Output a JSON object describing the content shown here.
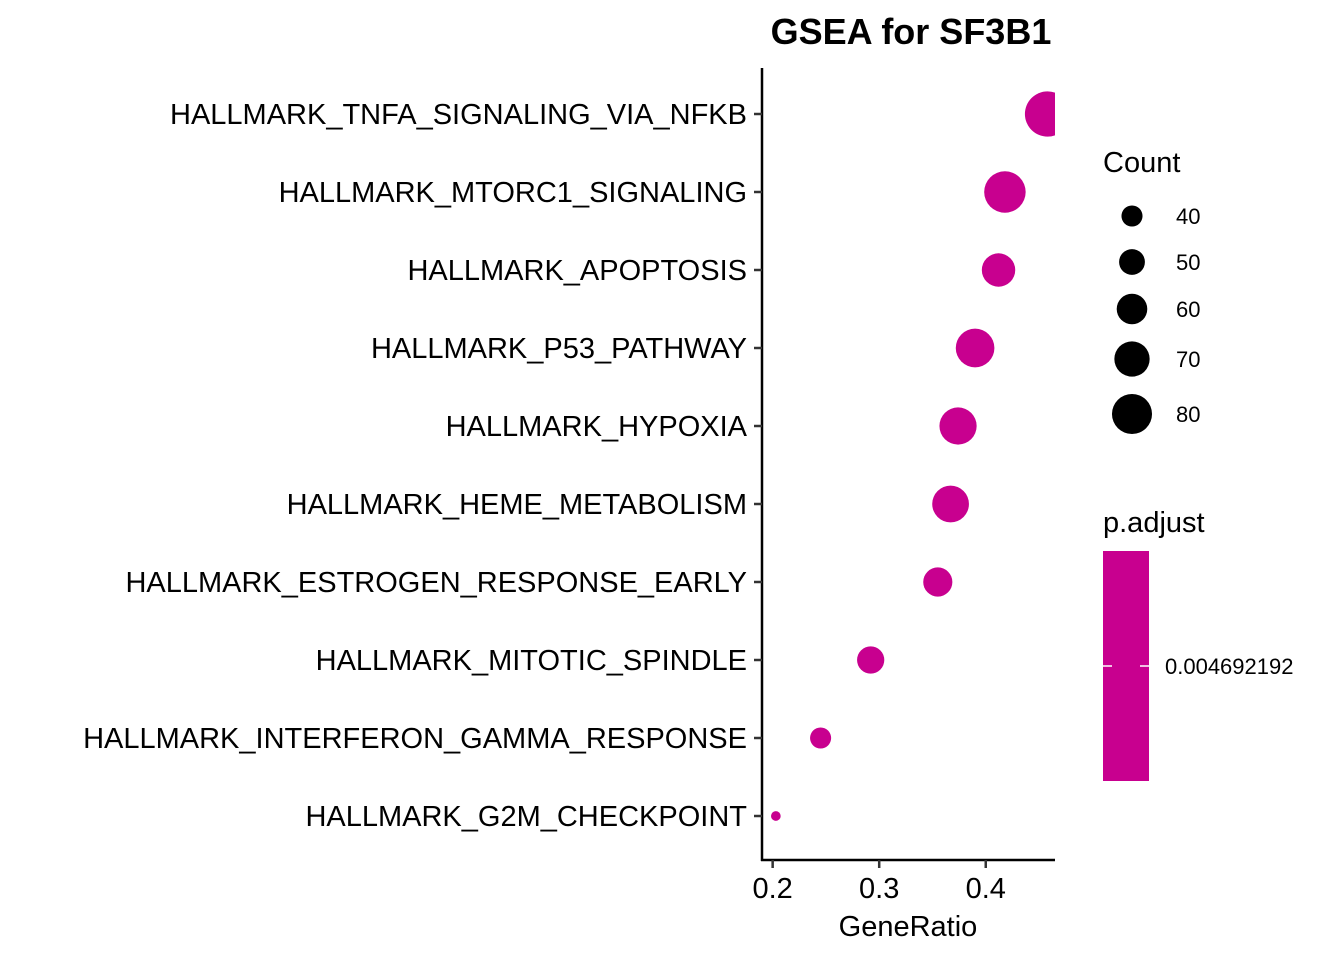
{
  "chart_data": {
    "type": "scatter",
    "title": "GSEA for SF3B1",
    "xlabel": "GeneRatio",
    "ylabel": "",
    "xlim": [
      0.19,
      0.465
    ],
    "x_ticks": [
      0.2,
      0.3,
      0.4
    ],
    "x_tick_labels": [
      "0.2",
      "0.3",
      "0.4"
    ],
    "categories": [
      "HALLMARK_TNFA_SIGNALING_VIA_NFKB",
      "HALLMARK_MTORC1_SIGNALING",
      "HALLMARK_APOPTOSIS",
      "HALLMARK_P53_PATHWAY",
      "HALLMARK_HYPOXIA",
      "HALLMARK_HEME_METABOLISM",
      "HALLMARK_ESTROGEN_RESPONSE_EARLY",
      "HALLMARK_MITOTIC_SPINDLE",
      "HALLMARK_INTERFERON_GAMMA_RESPONSE",
      "HALLMARK_G2M_CHECKPOINT"
    ],
    "points": [
      {
        "term": "HALLMARK_TNFA_SIGNALING_VIA_NFKB",
        "gene_ratio": 0.458,
        "count": 91,
        "p_adjust": 0.004692192
      },
      {
        "term": "HALLMARK_MTORC1_SIGNALING",
        "gene_ratio": 0.418,
        "count": 83,
        "p_adjust": 0.004692192
      },
      {
        "term": "HALLMARK_APOPTOSIS",
        "gene_ratio": 0.412,
        "count": 66,
        "p_adjust": 0.004692192
      },
      {
        "term": "HALLMARK_P53_PATHWAY",
        "gene_ratio": 0.39,
        "count": 77,
        "p_adjust": 0.004692192
      },
      {
        "term": "HALLMARK_HYPOXIA",
        "gene_ratio": 0.374,
        "count": 74,
        "p_adjust": 0.004692192
      },
      {
        "term": "HALLMARK_HEME_METABOLISM",
        "gene_ratio": 0.367,
        "count": 73,
        "p_adjust": 0.004692192
      },
      {
        "term": "HALLMARK_ESTROGEN_RESPONSE_EARLY",
        "gene_ratio": 0.355,
        "count": 57,
        "p_adjust": 0.004692192
      },
      {
        "term": "HALLMARK_MITOTIC_SPINDLE",
        "gene_ratio": 0.292,
        "count": 53,
        "p_adjust": 0.004692192
      },
      {
        "term": "HALLMARK_INTERFERON_GAMMA_RESPONSE",
        "gene_ratio": 0.245,
        "count": 40,
        "p_adjust": 0.004692192
      },
      {
        "term": "HALLMARK_G2M_CHECKPOINT",
        "gene_ratio": 0.203,
        "count": 16,
        "p_adjust": 0.004692192
      }
    ],
    "point_color": "#C8008F",
    "legend": {
      "position": "right",
      "size": {
        "title": "Count",
        "values": [
          40,
          50,
          60,
          70,
          80
        ],
        "labels": [
          "40",
          "50",
          "60",
          "70",
          "80"
        ]
      },
      "color": {
        "title": "p.adjust",
        "value": 0.004692192,
        "label": "0.004692192",
        "color": "#C8008F"
      }
    },
    "grid": false
  }
}
